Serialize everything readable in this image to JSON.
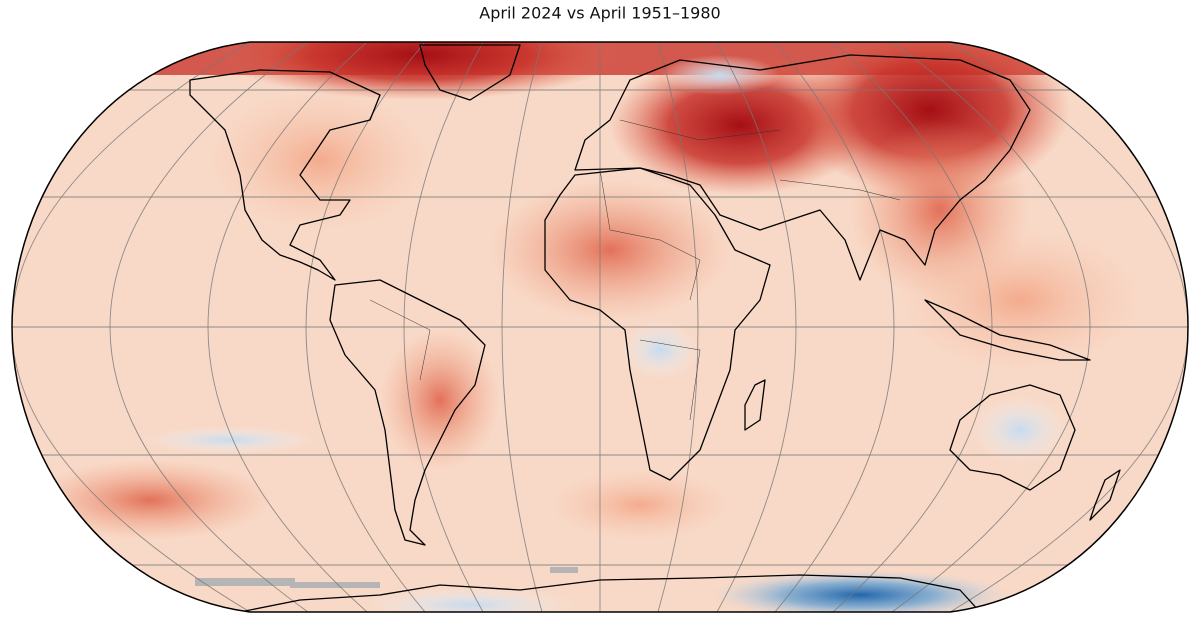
{
  "title": "April 2024 vs April 1951–1980"
}
